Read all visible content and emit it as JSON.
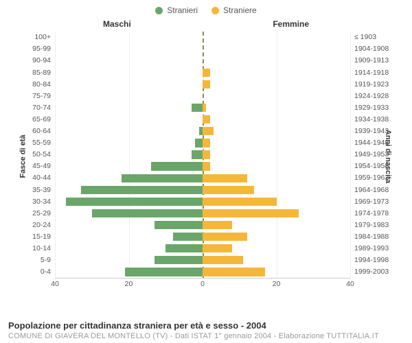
{
  "legend": {
    "male": {
      "label": "Stranieri",
      "color": "#6aa66a"
    },
    "female": {
      "label": "Straniere",
      "color": "#f5b73a"
    }
  },
  "column_titles": {
    "left": "Maschi",
    "right": "Femmine"
  },
  "y_axis_labels": {
    "left": "Fasce di età",
    "right": "Anni di nascita"
  },
  "chart": {
    "type": "population-pyramid",
    "max_value": 40,
    "grid_step": 20,
    "background_color": "#ffffff",
    "grid_color": "#eeeeee",
    "center_line_color": "#888855",
    "male_color": "#6aa66a",
    "female_color": "#f5b73a",
    "label_fontsize": 10.5,
    "rows": [
      {
        "age": "100+",
        "birth": "≤ 1903",
        "m": 0,
        "f": 0
      },
      {
        "age": "95-99",
        "birth": "1904-1908",
        "m": 0,
        "f": 0
      },
      {
        "age": "90-94",
        "birth": "1909-1913",
        "m": 0,
        "f": 0
      },
      {
        "age": "85-89",
        "birth": "1914-1918",
        "m": 0,
        "f": 2
      },
      {
        "age": "80-84",
        "birth": "1919-1923",
        "m": 0,
        "f": 2
      },
      {
        "age": "75-79",
        "birth": "1924-1928",
        "m": 0,
        "f": 0
      },
      {
        "age": "70-74",
        "birth": "1929-1933",
        "m": 3,
        "f": 1
      },
      {
        "age": "65-69",
        "birth": "1934-1938",
        "m": 0,
        "f": 2
      },
      {
        "age": "60-64",
        "birth": "1939-1943",
        "m": 1,
        "f": 3
      },
      {
        "age": "55-59",
        "birth": "1944-1948",
        "m": 2,
        "f": 2
      },
      {
        "age": "50-54",
        "birth": "1949-1953",
        "m": 3,
        "f": 2
      },
      {
        "age": "45-49",
        "birth": "1954-1958",
        "m": 14,
        "f": 2
      },
      {
        "age": "40-44",
        "birth": "1959-1963",
        "m": 22,
        "f": 12
      },
      {
        "age": "35-39",
        "birth": "1964-1968",
        "m": 33,
        "f": 14
      },
      {
        "age": "30-34",
        "birth": "1969-1973",
        "m": 37,
        "f": 20
      },
      {
        "age": "25-29",
        "birth": "1974-1978",
        "m": 30,
        "f": 26
      },
      {
        "age": "20-24",
        "birth": "1979-1983",
        "m": 13,
        "f": 8
      },
      {
        "age": "15-19",
        "birth": "1984-1988",
        "m": 8,
        "f": 12
      },
      {
        "age": "10-14",
        "birth": "1989-1993",
        "m": 10,
        "f": 8
      },
      {
        "age": "5-9",
        "birth": "1994-1998",
        "m": 13,
        "f": 11
      },
      {
        "age": "0-4",
        "birth": "1999-2003",
        "m": 21,
        "f": 17
      }
    ],
    "x_ticks_left": [
      40,
      20,
      0
    ],
    "x_ticks_right": [
      20,
      40
    ]
  },
  "footer": {
    "title": "Popolazione per cittadinanza straniera per età e sesso - 2004",
    "subtitle": "COMUNE DI GIAVERA DEL MONTELLO (TV) - Dati ISTAT 1° gennaio 2004 - Elaborazione TUTTITALIA.IT"
  }
}
